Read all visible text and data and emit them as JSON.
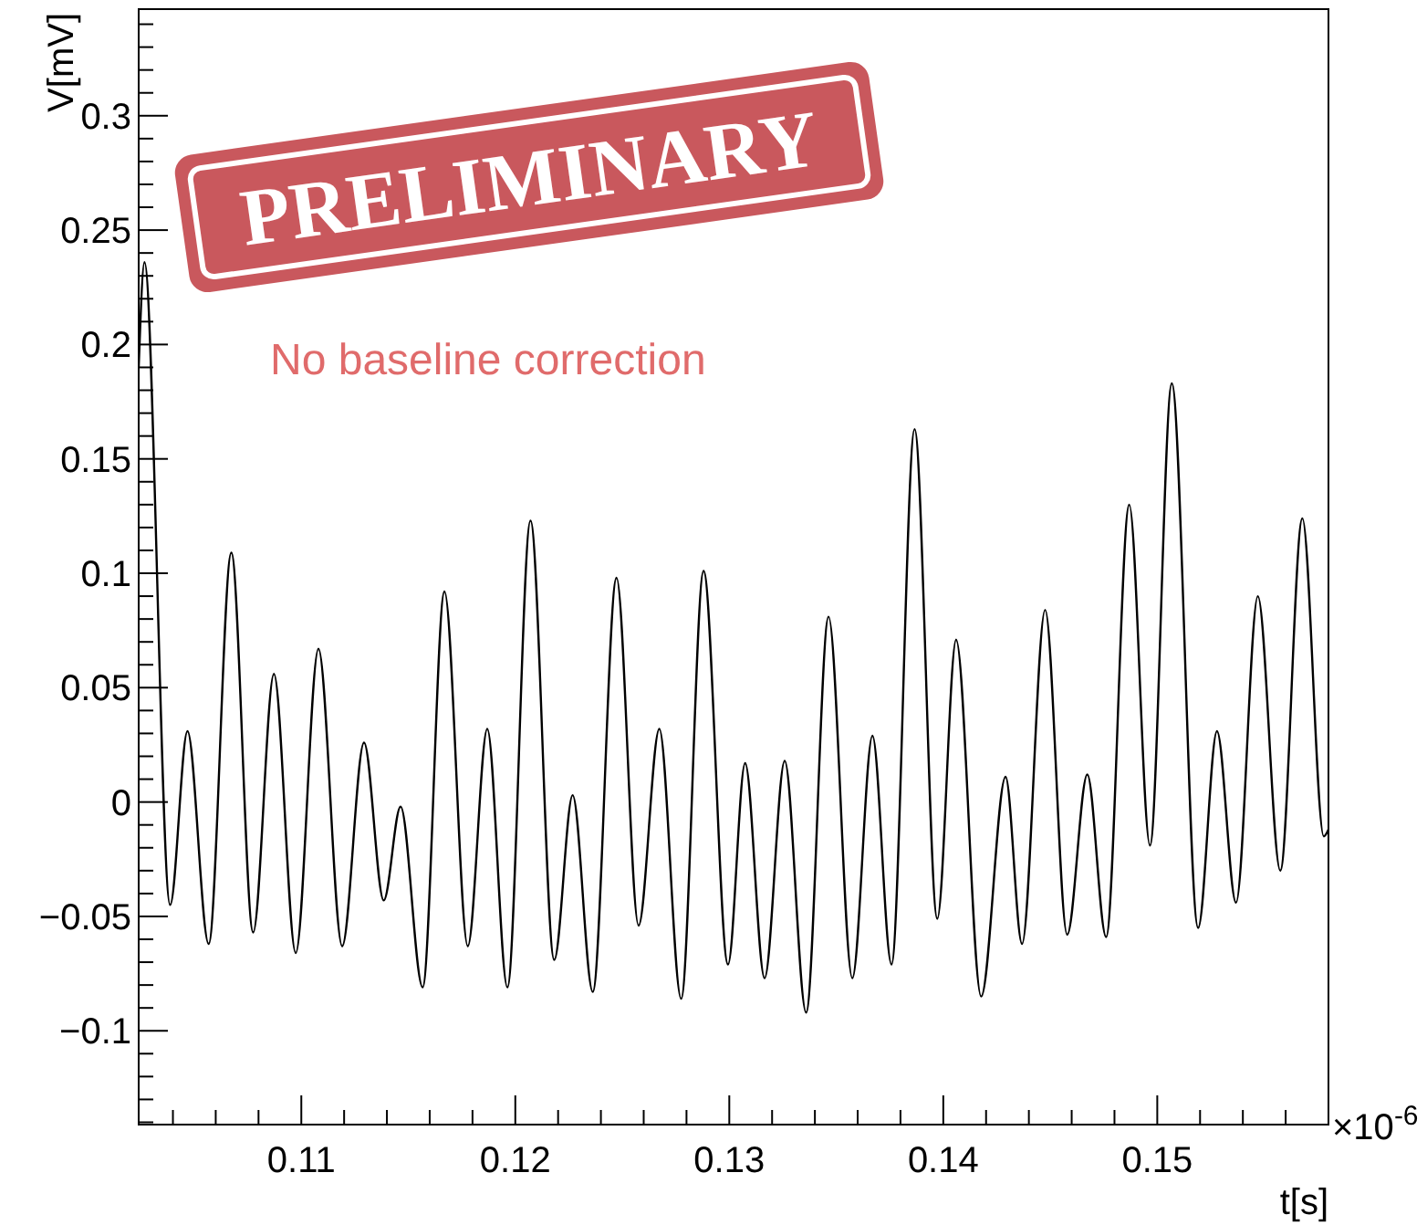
{
  "chart_data": {
    "type": "line",
    "xlabel": "t[s]",
    "ylabel": "V[mV]",
    "annotations": [
      "PRELIMINARY",
      "No baseline correction",
      "×10$^{-6}$"
    ],
    "xlim": [
      0.1024,
      0.158
    ],
    "ylim": [
      -0.141,
      0.3466
    ],
    "xticks": [
      {
        "value": 0.104,
        "label": null
      },
      {
        "value": 0.106,
        "label": null
      },
      {
        "value": 0.108,
        "label": null
      },
      0.11,
      {
        "value": 0.112,
        "label": null
      },
      {
        "value": 0.114,
        "label": null
      },
      {
        "value": 0.116,
        "label": null
      },
      {
        "value": 0.118,
        "label": null
      },
      0.12,
      {
        "value": 0.122,
        "label": null
      },
      {
        "value": 0.124,
        "label": null
      },
      {
        "value": 0.126,
        "label": null
      },
      {
        "value": 0.128,
        "label": null
      },
      0.13,
      {
        "value": 0.132,
        "label": null
      },
      {
        "value": 0.134,
        "label": null
      },
      {
        "value": 0.136,
        "label": null
      },
      {
        "value": 0.138,
        "label": null
      },
      0.14,
      {
        "value": 0.142,
        "label": null
      },
      {
        "value": 0.144,
        "label": null
      },
      {
        "value": 0.146,
        "label": null
      },
      {
        "value": 0.148,
        "label": null
      },
      0.15,
      {
        "value": 0.152,
        "label": null
      },
      {
        "value": 0.154,
        "label": null
      },
      {
        "value": 0.156,
        "label": null
      },
      {
        "value": 0.158,
        "label": null
      }
    ],
    "yticks": [
      {
        "value": -0.14,
        "label": null
      },
      {
        "value": -0.13,
        "label": null
      },
      {
        "value": -0.12,
        "label": null
      },
      {
        "value": -0.11,
        "label": null
      },
      {
        "value": -0.1,
        "label": "−0.1"
      },
      {
        "value": -0.09,
        "label": null
      },
      {
        "value": -0.08,
        "label": null
      },
      {
        "value": -0.07,
        "label": null
      },
      {
        "value": -0.06,
        "label": null
      },
      {
        "value": -0.05,
        "label": "−0.05"
      },
      {
        "value": -0.04,
        "label": null
      },
      {
        "value": -0.03,
        "label": null
      },
      {
        "value": -0.02,
        "label": null
      },
      {
        "value": -0.01,
        "label": null
      },
      0,
      {
        "value": 0.01,
        "label": null
      },
      {
        "value": 0.02,
        "label": null
      },
      {
        "value": 0.03,
        "label": null
      },
      {
        "value": 0.04,
        "label": null
      },
      0.05,
      {
        "value": 0.06,
        "label": null
      },
      {
        "value": 0.07,
        "label": null
      },
      {
        "value": 0.08,
        "label": null
      },
      {
        "value": 0.09,
        "label": null
      },
      0.1,
      {
        "value": 0.11,
        "label": null
      },
      {
        "value": 0.12,
        "label": null
      },
      {
        "value": 0.13,
        "label": null
      },
      {
        "value": 0.14,
        "label": null
      },
      0.15,
      {
        "value": 0.16,
        "label": null
      },
      {
        "value": 0.17,
        "label": null
      },
      {
        "value": 0.18,
        "label": null
      },
      {
        "value": 0.19,
        "label": null
      },
      0.2,
      {
        "value": 0.21,
        "label": null
      },
      {
        "value": 0.22,
        "label": null
      },
      {
        "value": 0.23,
        "label": null
      },
      {
        "value": 0.24,
        "label": null
      },
      0.25,
      {
        "value": 0.26,
        "label": null
      },
      {
        "value": 0.27,
        "label": null
      },
      {
        "value": 0.28,
        "label": null
      },
      {
        "value": 0.29,
        "label": null
      },
      0.3,
      {
        "value": 0.31,
        "label": null
      },
      {
        "value": 0.32,
        "label": null
      },
      {
        "value": 0.33,
        "label": null
      },
      {
        "value": 0.34,
        "label": null
      }
    ],
    "grid": false,
    "marker": "none",
    "line_style": "solid",
    "series": [
      {
        "color": "#000000",
        "x": [
          0.1024,
          0.10267,
          0.10387,
          0.10468,
          0.10567,
          0.10673,
          0.10775,
          0.10872,
          0.10974,
          0.1108,
          0.11191,
          0.11293,
          0.11385,
          0.11464,
          0.11567,
          0.11669,
          0.11778,
          0.11869,
          0.11963,
          0.12071,
          0.12182,
          0.12268,
          0.12362,
          0.12473,
          0.12576,
          0.12673,
          0.12775,
          0.1288,
          0.12994,
          0.13074,
          0.13165,
          0.13259,
          0.13359,
          0.13464,
          0.13575,
          0.13669,
          0.13758,
          0.13866,
          0.13972,
          0.1406,
          0.14177,
          0.14291,
          0.14368,
          0.14476,
          0.14579,
          0.14673,
          0.14761,
          0.14869,
          0.14966,
          0.15068,
          0.15191,
          0.15279,
          0.15368,
          0.1547,
          0.15575,
          0.15678,
          0.15778,
          0.158
        ],
        "values": [
          0.19,
          0.236,
          -0.045,
          0.031,
          -0.062,
          0.109,
          -0.057,
          0.056,
          -0.066,
          0.067,
          -0.063,
          0.026,
          -0.043,
          -0.002,
          -0.081,
          0.092,
          -0.063,
          0.032,
          -0.081,
          0.123,
          -0.069,
          0.003,
          -0.083,
          0.098,
          -0.054,
          0.032,
          -0.086,
          0.101,
          -0.071,
          0.017,
          -0.077,
          0.018,
          -0.092,
          0.081,
          -0.077,
          0.029,
          -0.071,
          0.163,
          -0.051,
          0.071,
          -0.085,
          0.011,
          -0.062,
          0.084,
          -0.058,
          0.012,
          -0.059,
          0.13,
          -0.019,
          0.183,
          -0.055,
          0.031,
          -0.044,
          0.09,
          -0.03,
          0.124,
          -0.015,
          -0.012
        ]
      }
    ]
  }
}
